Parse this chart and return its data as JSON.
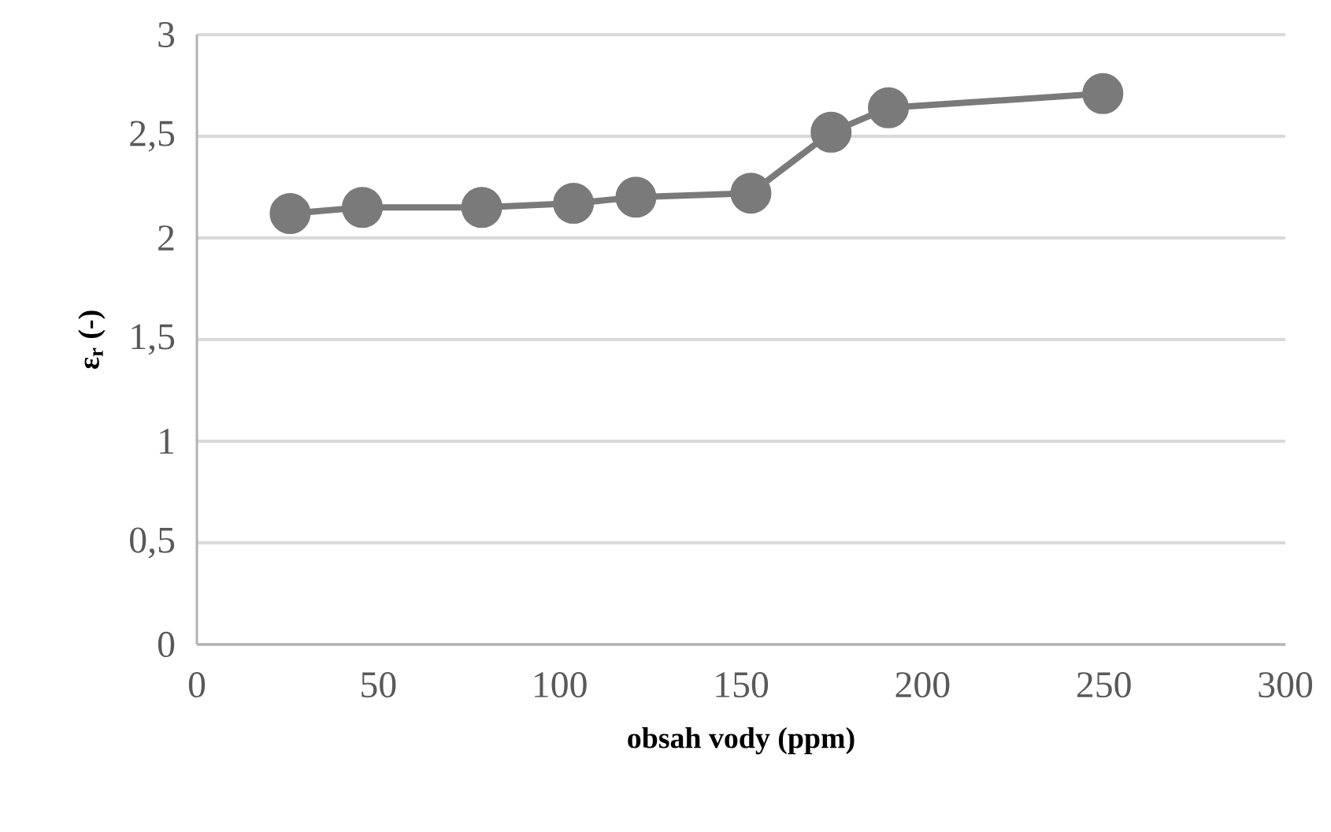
{
  "chart_data": {
    "type": "line",
    "xlabel": "obsah vody (ppm)",
    "ylabel": "ε$_{r}$ (-)",
    "x": [
      25.7,
      45.6,
      78.5,
      103.8,
      121,
      152.7,
      174.8,
      190.6,
      249.7
    ],
    "series": [
      {
        "color": "#7a7a7a",
        "values": [
          2.12,
          2.15,
          2.15,
          2.17,
          2.2,
          2.22,
          2.52,
          2.64,
          2.71
        ]
      }
    ],
    "xlim": [
      0,
      300
    ],
    "ylim": [
      0,
      3
    ],
    "xticks": [
      0,
      50,
      100,
      150,
      200,
      250,
      300
    ],
    "yticks": [
      0,
      {
        "value": 0.5,
        "label": "0,5"
      },
      1,
      {
        "value": 1.5,
        "label": "1,5"
      },
      2,
      {
        "value": 2.5,
        "label": "2,5"
      },
      3
    ],
    "grid": "y",
    "marker": "circle",
    "line_style": "solid"
  }
}
